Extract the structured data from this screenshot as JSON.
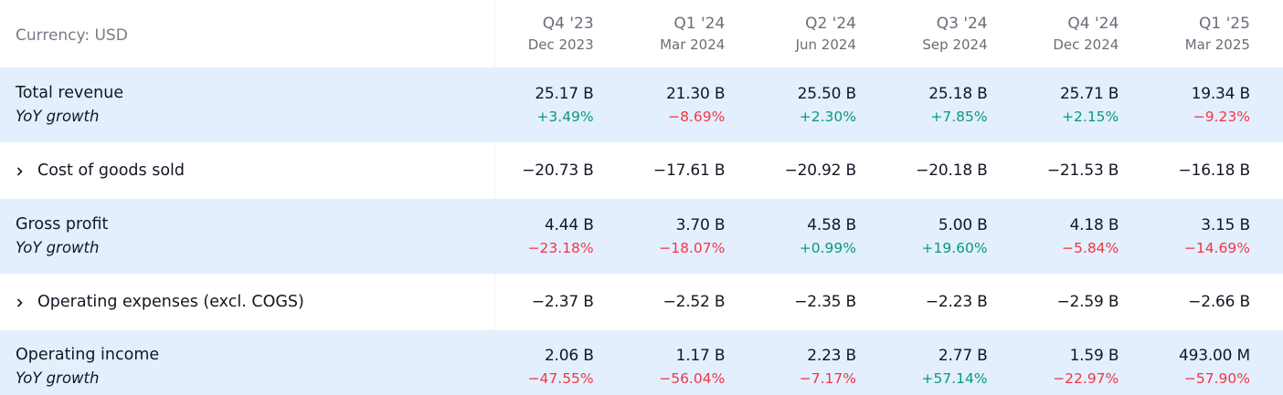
{
  "header": {
    "currency_label": "Currency: USD",
    "periods": [
      {
        "quarter": "Q4 '23",
        "date": "Dec 2023"
      },
      {
        "quarter": "Q1 '24",
        "date": "Mar 2024"
      },
      {
        "quarter": "Q2 '24",
        "date": "Jun 2024"
      },
      {
        "quarter": "Q3 '24",
        "date": "Sep 2024"
      },
      {
        "quarter": "Q4 '24",
        "date": "Dec 2024"
      },
      {
        "quarter": "Q1 '25",
        "date": "Mar 2025"
      }
    ]
  },
  "rows": {
    "total_revenue": {
      "label": "Total revenue",
      "sub_label": "YoY growth",
      "values": [
        "25.17 B",
        "21.30 B",
        "25.50 B",
        "25.18 B",
        "25.71 B",
        "19.34 B"
      ],
      "growth": [
        "+3.49%",
        "−8.69%",
        "+2.30%",
        "+7.85%",
        "+2.15%",
        "−9.23%"
      ]
    },
    "cogs": {
      "label": "Cost of goods sold",
      "values": [
        "−20.73 B",
        "−17.61 B",
        "−20.92 B",
        "−20.18 B",
        "−21.53 B",
        "−16.18 B"
      ]
    },
    "gross_profit": {
      "label": "Gross profit",
      "sub_label": "YoY growth",
      "values": [
        "4.44 B",
        "3.70 B",
        "4.58 B",
        "5.00 B",
        "4.18 B",
        "3.15 B"
      ],
      "growth": [
        "−23.18%",
        "−18.07%",
        "+0.99%",
        "+19.60%",
        "−5.84%",
        "−14.69%"
      ]
    },
    "opex": {
      "label": "Operating expenses (excl. COGS)",
      "values": [
        "−2.37 B",
        "−2.52 B",
        "−2.35 B",
        "−2.23 B",
        "−2.59 B",
        "−2.66 B"
      ]
    },
    "operating_income": {
      "label": "Operating income",
      "sub_label": "YoY growth",
      "values": [
        "2.06 B",
        "1.17 B",
        "2.23 B",
        "2.77 B",
        "1.59 B",
        "493.00 M"
      ],
      "growth": [
        "−47.55%",
        "−56.04%",
        "−7.17%",
        "+57.14%",
        "−22.97%",
        "−57.90%"
      ]
    }
  },
  "colors": {
    "positive": "#089981",
    "negative": "#f23645",
    "row_highlight": "#e3effd"
  },
  "icons": {
    "expand": "chevron-right-icon"
  }
}
